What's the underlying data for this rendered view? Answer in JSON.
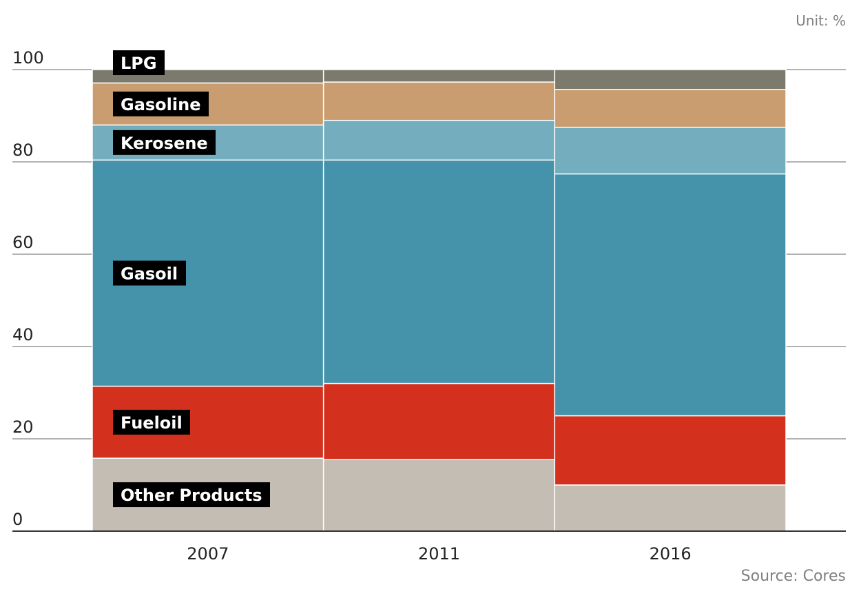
{
  "unit_label": "Unit: %",
  "source_label": "Source: Cores",
  "colors": {
    "background": "#ffffff",
    "axis": "#333333",
    "grid": "#666666",
    "tick_text": "#222222",
    "meta_text": "#808080",
    "label_bg": "#000000",
    "label_text": "#ffffff",
    "segment_border": "#ffffff"
  },
  "chart_data": {
    "type": "bar",
    "stacked": true,
    "normalized_percent": true,
    "categories": [
      "2007",
      "2011",
      "2016"
    ],
    "ylim": [
      0,
      100
    ],
    "yticks": [
      0,
      20,
      40,
      60,
      80,
      100
    ],
    "grid": true,
    "xlabel": "",
    "ylabel": "",
    "title": "",
    "series": [
      {
        "name": "Other Products",
        "color": "#c4bdb3",
        "values": [
          15.8,
          15.5,
          10.0
        ]
      },
      {
        "name": "Fueloil",
        "color": "#d3311e",
        "values": [
          15.6,
          16.5,
          15.0
        ]
      },
      {
        "name": "Gasoil",
        "color": "#4493ab",
        "values": [
          49.0,
          48.4,
          52.4
        ]
      },
      {
        "name": "Kerosene",
        "color": "#74adbd",
        "values": [
          7.6,
          8.6,
          10.1
        ]
      },
      {
        "name": "Gasoline",
        "color": "#c99d6f",
        "values": [
          9.1,
          8.3,
          8.2
        ]
      },
      {
        "name": "LPG",
        "color": "#7b7a6d",
        "values": [
          2.9,
          2.7,
          4.3
        ]
      }
    ]
  }
}
